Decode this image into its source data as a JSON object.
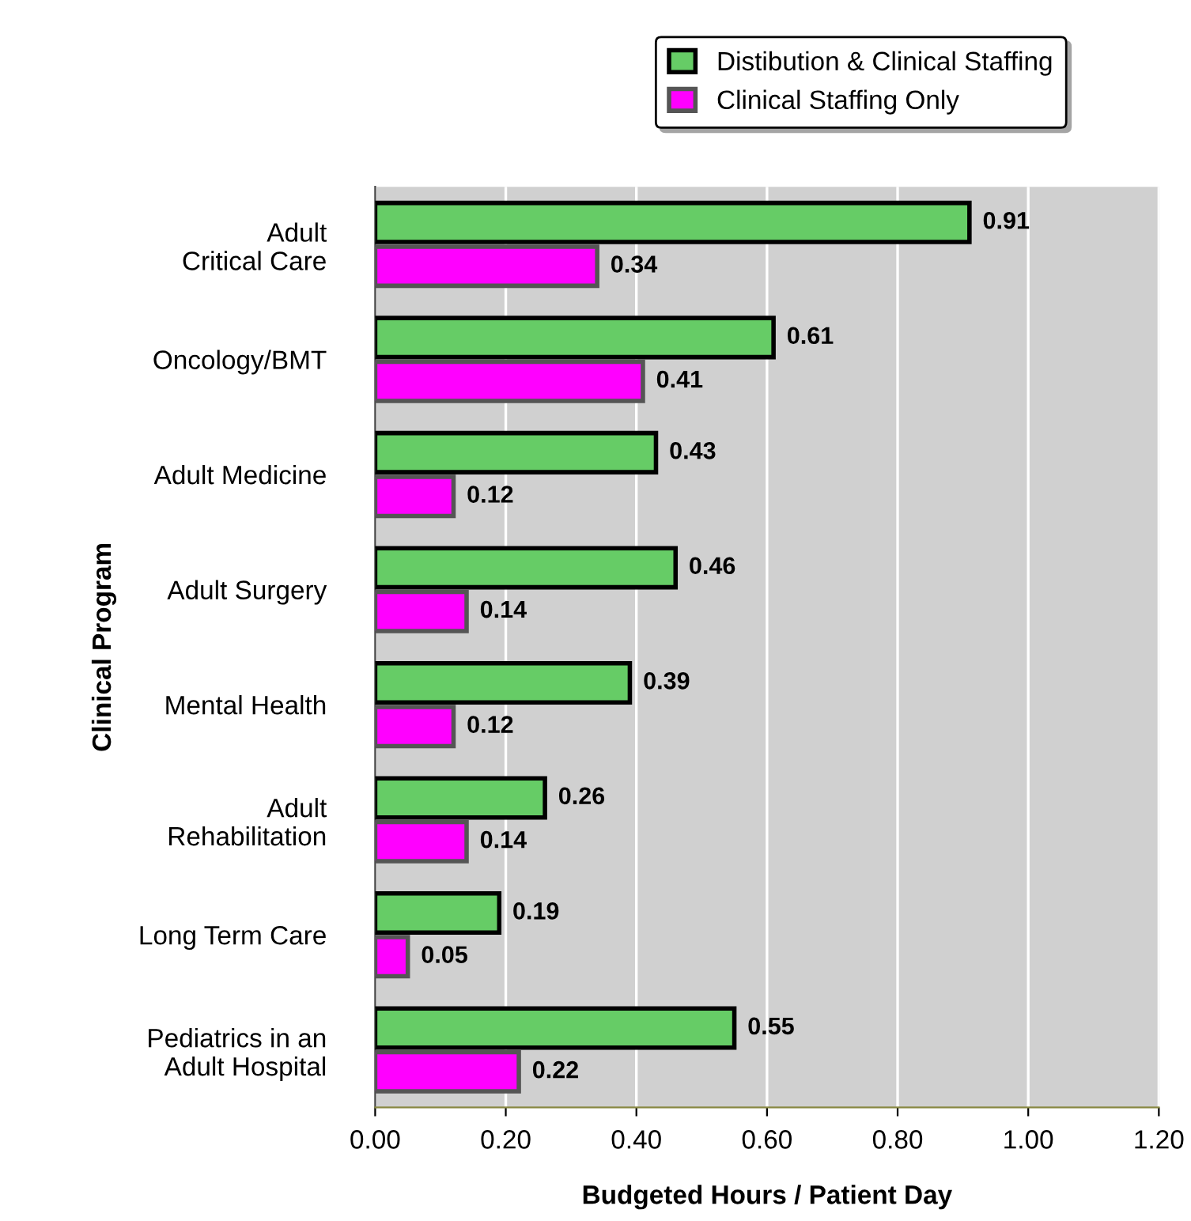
{
  "chart_data": {
    "type": "bar",
    "orientation": "horizontal",
    "xlabel": "Budgeted Hours / Patient Day",
    "ylabel": "Clinical Program",
    "categories": [
      "Adult\nCritical Care",
      "Oncology/BMT",
      "Adult Medicine",
      "Adult Surgery",
      "Mental Health",
      "Adult\nRehabilitation",
      "Long Term Care",
      "Pediatrics in an\nAdult Hospital"
    ],
    "series": [
      {
        "name": "Distibution & Clinical Staffing",
        "color": "#66cc66",
        "values": [
          0.91,
          0.61,
          0.43,
          0.46,
          0.39,
          0.26,
          0.19,
          0.55
        ]
      },
      {
        "name": "Clinical Staffing Only",
        "color": "#ff00ff",
        "values": [
          0.34,
          0.41,
          0.12,
          0.14,
          0.12,
          0.14,
          0.05,
          0.22
        ]
      }
    ],
    "xlim": [
      0,
      1.2
    ],
    "xticks": [
      {
        "value": 0,
        "label": "0.00"
      },
      {
        "value": 0.2,
        "label": "0.20"
      },
      {
        "value": 0.4,
        "label": "0.40"
      },
      {
        "value": 0.6,
        "label": "0.60"
      },
      {
        "value": 0.8,
        "label": "0.80"
      },
      {
        "value": 1.0,
        "label": "1.00"
      },
      {
        "value": 1.2,
        "label": "1.20"
      }
    ],
    "grid": "x",
    "legend": "top",
    "data_labels": true
  }
}
